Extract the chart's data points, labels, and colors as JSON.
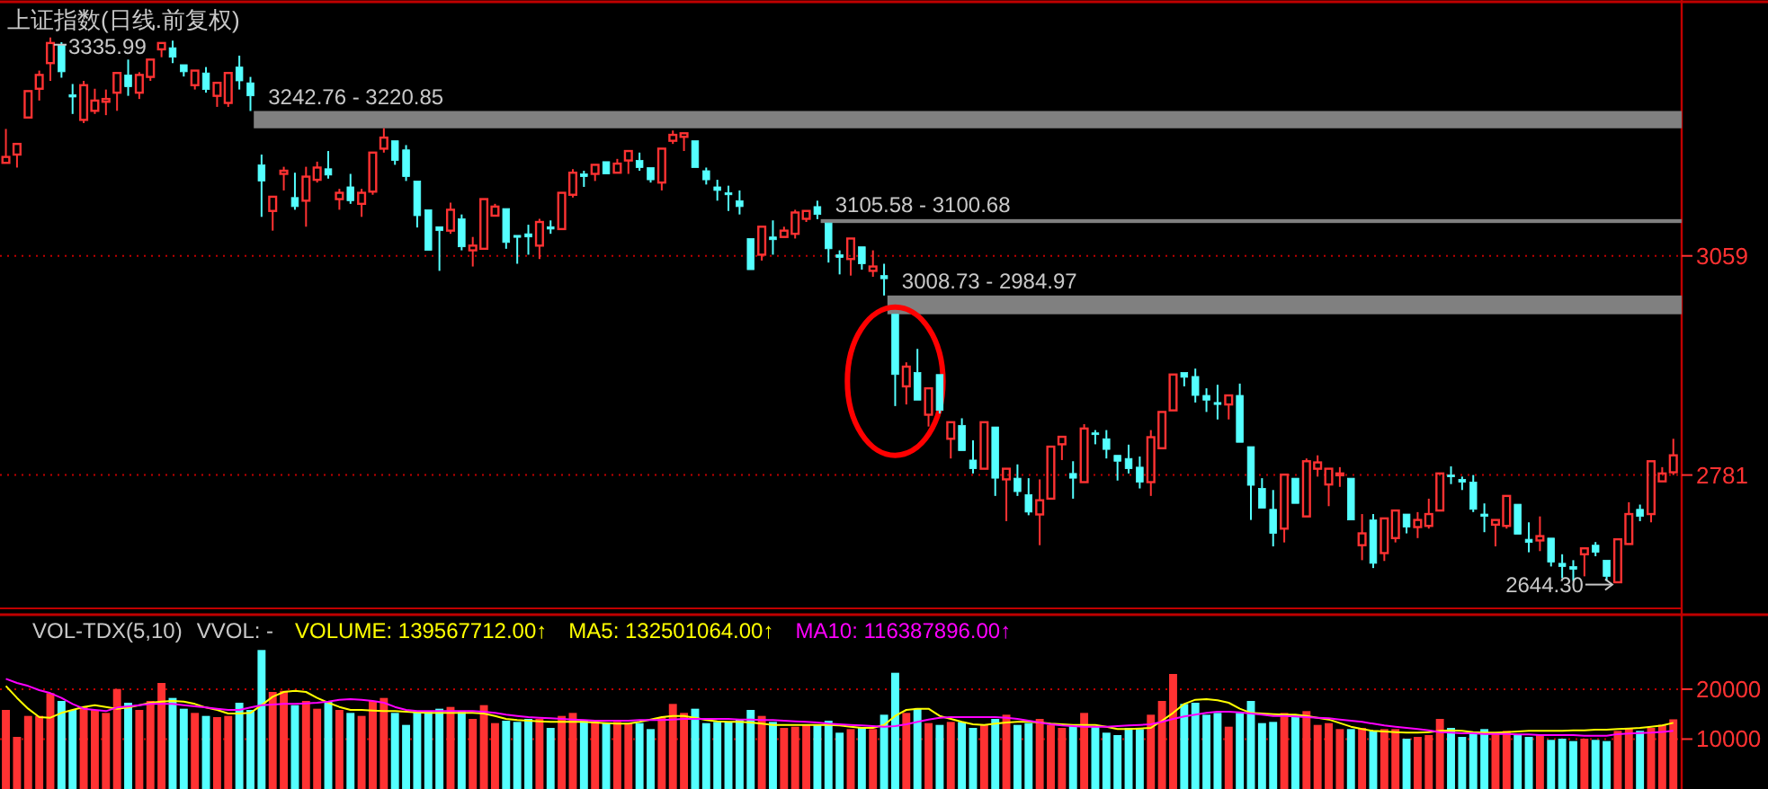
{
  "chart_data": [
    {
      "type": "candlestick",
      "title": "上证指数(日线.前复权)",
      "categories": [
        null,
        null,
        null,
        null,
        null,
        null,
        null,
        null,
        null,
        null,
        null,
        null,
        null,
        null,
        null,
        null,
        null,
        null,
        null,
        null,
        null,
        null,
        null,
        null,
        null,
        null,
        null,
        null,
        null,
        null,
        null,
        null,
        null,
        null,
        null,
        null,
        null,
        null,
        null,
        null,
        null,
        null,
        null,
        null,
        null,
        null,
        null,
        null,
        null,
        null,
        null,
        null,
        null,
        null,
        null,
        null,
        null,
        null,
        null,
        null,
        null,
        null,
        null,
        null,
        null,
        null,
        null,
        null,
        null,
        null,
        null,
        null,
        null,
        null,
        null,
        null,
        null,
        null,
        null,
        null,
        null,
        null,
        null,
        null,
        null,
        null,
        null,
        null,
        null,
        null,
        null,
        null,
        null,
        null,
        null,
        null,
        null,
        null,
        null,
        null,
        null,
        null,
        null,
        null,
        null,
        null,
        null,
        null,
        null,
        null,
        null,
        null,
        null,
        null,
        null,
        null,
        null,
        null,
        null,
        null,
        null,
        null,
        null,
        null,
        null,
        null,
        null,
        null,
        null,
        null,
        null,
        null,
        null,
        null,
        null,
        null,
        null,
        null,
        null,
        null,
        null,
        null,
        null,
        null,
        null,
        null,
        null,
        null,
        null,
        null,
        null
      ],
      "ylim": [
        2613,
        3379
      ],
      "yticks": [
        3059,
        2781
      ],
      "grid": "y",
      "tick_labels": "y",
      "ohlc": [
        [
          3177,
          3220,
          3174.5,
          3184.5
        ],
        [
          3187.5,
          3202.5,
          3171,
          3201
        ],
        [
          3234.5,
          3269.5,
          3231.5,
          3268
        ],
        [
          3271,
          3294,
          3256,
          3288.5
        ],
        [
          3303.5,
          3335.99,
          3281,
          3329
        ],
        [
          3326.5,
          3330,
          3285,
          3292.5
        ],
        [
          3263.5,
          3277,
          3239,
          3260.5
        ],
        [
          3231.5,
          3281,
          3227.5,
          3275.5
        ],
        [
          3243,
          3271,
          3239,
          3256
        ],
        [
          3254.5,
          3270,
          3237.5,
          3258
        ],
        [
          3266,
          3292,
          3243,
          3291
        ],
        [
          3288.5,
          3308,
          3262,
          3273.5
        ],
        [
          3266,
          3292,
          3258,
          3288.5
        ],
        [
          3286,
          3309,
          3281,
          3308
        ],
        [
          3321,
          3332,
          3311,
          3329
        ],
        [
          3323,
          3332,
          3303.5,
          3311
        ],
        [
          3301.5,
          3303.5,
          3286.5,
          3292.5
        ],
        [
          3275.5,
          3296,
          3270,
          3294
        ],
        [
          3291,
          3298.5,
          3266,
          3270
        ],
        [
          3262,
          3281,
          3248,
          3278.5
        ],
        [
          3253,
          3292,
          3248,
          3291
        ],
        [
          3298.5,
          3313,
          3270,
          3281
        ],
        [
          3278.5,
          3286,
          3242.76,
          3262
        ],
        [
          3174.5,
          3187.5,
          3108.5,
          3154
        ],
        [
          3116,
          3136.5,
          3091,
          3134
        ],
        [
          3163,
          3172,
          3142,
          3167
        ],
        [
          3133,
          3164.5,
          3117.5,
          3121.5
        ],
        [
          3129,
          3172,
          3096,
          3159.5
        ],
        [
          3155.5,
          3178.5,
          3152,
          3171
        ],
        [
          3169.5,
          3192,
          3157,
          3161.5
        ],
        [
          3131,
          3144,
          3117.5,
          3139
        ],
        [
          3146.5,
          3163,
          3125,
          3129
        ],
        [
          3125,
          3144,
          3108.5,
          3139
        ],
        [
          3140.5,
          3192,
          3136.5,
          3190
        ],
        [
          3195,
          3220.85,
          3190,
          3209
        ],
        [
          3205,
          3205,
          3174.5,
          3180
        ],
        [
          3193.5,
          3199.5,
          3154,
          3159.5
        ],
        [
          3154,
          3154,
          3095,
          3110
        ],
        [
          3117.5,
          3119,
          3064.5,
          3066
        ],
        [
          3096,
          3096,
          3040,
          3091
        ],
        [
          3091,
          3126.5,
          3087,
          3117.5
        ],
        [
          3106,
          3111.5,
          3066,
          3070.5
        ],
        [
          3066,
          3083,
          3045.5,
          3072
        ],
        [
          3068,
          3134,
          3066,
          3131
        ],
        [
          3110,
          3125,
          3108.5,
          3121.5
        ],
        [
          3119,
          3121.5,
          3068,
          3076
        ],
        [
          3085,
          3087,
          3049,
          3082.5
        ],
        [
          3087,
          3098.5,
          3060.5,
          3083
        ],
        [
          3072,
          3106,
          3055,
          3102
        ],
        [
          3096,
          3104,
          3087,
          3093
        ],
        [
          3093,
          3142,
          3091,
          3139
        ],
        [
          3136.5,
          3169,
          3133,
          3164.5
        ],
        [
          3163,
          3167,
          3146.5,
          3159.5
        ],
        [
          3163,
          3177,
          3154,
          3174.5
        ],
        [
          3178.5,
          3180,
          3161.5,
          3163
        ],
        [
          3164.5,
          3182,
          3161.5,
          3176
        ],
        [
          3180,
          3193.5,
          3163,
          3192
        ],
        [
          3180,
          3190,
          3167,
          3171
        ],
        [
          3171,
          3172,
          3152,
          3155.5
        ],
        [
          3152,
          3197.5,
          3142,
          3195
        ],
        [
          3205,
          3218,
          3201,
          3212.5
        ],
        [
          3210,
          3216,
          3192,
          3214.5
        ],
        [
          3205,
          3205,
          3169.5,
          3171
        ],
        [
          3167,
          3171,
          3149.5,
          3155.5
        ],
        [
          3146.5,
          3155.5,
          3129,
          3142
        ],
        [
          3139,
          3148,
          3116,
          3136.5
        ],
        [
          3129,
          3142,
          3111.5,
          3121.5
        ],
        [
          3081,
          3083,
          3040,
          3041.5
        ],
        [
          3060.5,
          3098.5,
          3053,
          3096
        ],
        [
          3083,
          3104,
          3060.5,
          3079.5
        ],
        [
          3083,
          3096,
          3081,
          3091
        ],
        [
          3087,
          3117.5,
          3081,
          3114
        ],
        [
          3106,
          3117.5,
          3102,
          3116
        ],
        [
          3121.5,
          3129,
          3105.58,
          3111.5
        ],
        [
          3100.68,
          3100.68,
          3050.5,
          3068
        ],
        [
          3060.5,
          3066,
          3035.5,
          3057
        ],
        [
          3055,
          3083,
          3034,
          3081
        ],
        [
          3070.5,
          3072,
          3041.5,
          3049
        ],
        [
          3040,
          3066,
          3032.5,
          3045.5
        ],
        [
          3034,
          3049,
          3008.73,
          3030
        ],
        [
          2984.97,
          2984.97,
          2868.5,
          2908.5
        ],
        [
          2893.5,
          2924,
          2870.5,
          2918.5
        ],
        [
          2911,
          2941,
          2873,
          2876
        ],
        [
          2857.5,
          2893,
          2842.5,
          2891
        ],
        [
          2908.5,
          2908.5,
          2859,
          2863
        ],
        [
          2827,
          2850,
          2802,
          2848
        ],
        [
          2844,
          2853,
          2812,
          2812
        ],
        [
          2800,
          2825,
          2783,
          2789
        ],
        [
          2789,
          2850,
          2787,
          2848
        ],
        [
          2842,
          2844,
          2754.5,
          2777
        ],
        [
          2775.5,
          2791,
          2722.5,
          2789
        ],
        [
          2777,
          2794.5,
          2754.5,
          2760
        ],
        [
          2756,
          2777,
          2730,
          2734
        ],
        [
          2731,
          2775.5,
          2692,
          2749
        ],
        [
          2751,
          2819.5,
          2751,
          2817
        ],
        [
          2820,
          2830,
          2800,
          2829.5
        ],
        [
          2783,
          2798.5,
          2751,
          2777
        ],
        [
          2772,
          2845.5,
          2770,
          2840
        ],
        [
          2834.5,
          2838,
          2820,
          2832.5
        ],
        [
          2827,
          2838,
          2802,
          2813.5
        ],
        [
          2806,
          2807,
          2774,
          2798.5
        ],
        [
          2802,
          2819.5,
          2783,
          2789
        ],
        [
          2791,
          2804.5,
          2764,
          2772
        ],
        [
          2772,
          2838,
          2754.5,
          2829
        ],
        [
          2815,
          2863,
          2812,
          2861
        ],
        [
          2863,
          2911,
          2861,
          2908.5
        ],
        [
          2911,
          2912,
          2893.5,
          2905
        ],
        [
          2906,
          2916,
          2873,
          2882
        ],
        [
          2882,
          2891,
          2861,
          2876
        ],
        [
          2873,
          2895.5,
          2851.5,
          2870.5
        ],
        [
          2870.5,
          2883.5,
          2851.5,
          2882
        ],
        [
          2882,
          2897,
          2821,
          2822.5
        ],
        [
          2817,
          2817,
          2724,
          2768
        ],
        [
          2764,
          2777,
          2737.5,
          2739
        ],
        [
          2737.5,
          2762,
          2690.5,
          2707
        ],
        [
          2713,
          2783,
          2695.5,
          2781.5
        ],
        [
          2777,
          2779,
          2743.5,
          2745
        ],
        [
          2728.5,
          2802,
          2726,
          2798.5
        ],
        [
          2789,
          2806,
          2779,
          2797
        ],
        [
          2769,
          2791,
          2741.5,
          2789
        ],
        [
          2781,
          2791,
          2766,
          2783
        ],
        [
          2777,
          2779,
          2722.5,
          2724
        ],
        [
          2692,
          2731.5,
          2673,
          2707
        ],
        [
          2724,
          2731.5,
          2663,
          2669
        ],
        [
          2682,
          2728,
          2672,
          2726
        ],
        [
          2701,
          2739,
          2695.5,
          2736
        ],
        [
          2731.5,
          2731.5,
          2707,
          2715
        ],
        [
          2715,
          2734,
          2701,
          2724
        ],
        [
          2716.5,
          2751,
          2713,
          2731.5
        ],
        [
          2736,
          2784.5,
          2734,
          2783
        ],
        [
          2781,
          2792,
          2769.5,
          2779
        ],
        [
          2775.5,
          2779,
          2762,
          2772
        ],
        [
          2772,
          2781,
          2734,
          2737.5
        ],
        [
          2731.5,
          2745,
          2708.5,
          2728.5
        ],
        [
          2718,
          2726,
          2690.5,
          2724
        ],
        [
          2716.5,
          2756.5,
          2713,
          2754.5
        ],
        [
          2744,
          2745,
          2703.5,
          2706
        ],
        [
          2699.5,
          2721,
          2683,
          2695.5
        ],
        [
          2698,
          2728.5,
          2684.5,
          2703.5
        ],
        [
          2701,
          2703.5,
          2665,
          2670.5
        ],
        [
          2669,
          2680.5,
          2650,
          2665
        ],
        [
          2665,
          2673,
          2646.5,
          2661.5
        ],
        [
          2680.5,
          2690.5,
          2652.5,
          2688
        ],
        [
          2692,
          2696,
          2678,
          2683
        ],
        [
          2673,
          2673,
          2646.5,
          2652.5
        ],
        [
          2645,
          2701,
          2644.3,
          2699.5
        ],
        [
          2693.5,
          2746.5,
          2690.5,
          2731.5
        ],
        [
          2737.5,
          2743.5,
          2722.5,
          2728.5
        ],
        [
          2731.5,
          2800,
          2721,
          2798.5
        ],
        [
          2773,
          2791,
          2771.5,
          2783
        ],
        [
          2784.5,
          2827,
          2781,
          2806
        ]
      ],
      "bands": [
        {
          "axis": "y",
          "from": 3242.76,
          "to": 3220.85,
          "label": "3242.76 - 3220.85",
          "color": "#808080"
        },
        {
          "axis": "y",
          "from": 3105.58,
          "to": 3100.68,
          "label": "3105.58 - 3100.68",
          "color": "#808080"
        },
        {
          "axis": "y",
          "from": 3008.73,
          "to": 2984.97,
          "label": "3008.73 - 2984.97",
          "color": "#808080"
        }
      ],
      "annotations": [
        "3335.99",
        "2644.30"
      ]
    },
    {
      "type": "bar",
      "title": "VOL-TDX(5,10)",
      "categories": [
        null,
        null,
        null,
        null,
        null,
        null,
        null,
        null,
        null,
        null,
        null,
        null,
        null,
        null,
        null,
        null,
        null,
        null,
        null,
        null,
        null,
        null,
        null,
        null,
        null,
        null,
        null,
        null,
        null,
        null,
        null,
        null,
        null,
        null,
        null,
        null,
        null,
        null,
        null,
        null,
        null,
        null,
        null,
        null,
        null,
        null,
        null,
        null,
        null,
        null,
        null,
        null,
        null,
        null,
        null,
        null,
        null,
        null,
        null,
        null,
        null,
        null,
        null,
        null,
        null,
        null,
        null,
        null,
        null,
        null,
        null,
        null,
        null,
        null,
        null,
        null,
        null,
        null,
        null,
        null,
        null,
        null,
        null,
        null,
        null,
        null,
        null,
        null,
        null,
        null,
        null,
        null,
        null,
        null,
        null,
        null,
        null,
        null,
        null,
        null,
        null,
        null,
        null,
        null,
        null,
        null,
        null,
        null,
        null,
        null,
        null,
        null,
        null,
        null,
        null,
        null,
        null,
        null,
        null,
        null,
        null,
        null,
        null,
        null,
        null,
        null,
        null,
        null,
        null,
        null,
        null,
        null,
        null,
        null,
        null,
        null,
        null,
        null,
        null,
        null,
        null,
        null,
        null,
        null,
        null,
        null,
        null,
        null,
        null,
        null,
        null
      ],
      "ylim": [
        0,
        34560
      ],
      "yticks": [
        10000,
        20000
      ],
      "grid": "y",
      "tick_labels": "y",
      "legend": "top left",
      "annotations": [
        "VVOL: -",
        "VOLUME: 139567712.00↑"
      ],
      "series": [
        {
          "type": "bar",
          "values": [
            15840,
            10440,
            14640,
            14640,
            19200,
            17640,
            15840,
            16440,
            15840,
            15240,
            20040,
            17280,
            15840,
            17640,
            21240,
            18240,
            16080,
            15240,
            14640,
            14400,
            14640,
            17280,
            15840,
            27840,
            19440,
            19680,
            16800,
            17640,
            16080,
            17640,
            15840,
            15240,
            14640,
            17640,
            18240,
            15240,
            12840,
            15600,
            15600,
            16080,
            16440,
            15600,
            14040,
            16800,
            13200,
            13680,
            13440,
            14040,
            14040,
            12240,
            14640,
            15240,
            13680,
            13440,
            13200,
            13440,
            13200,
            13200,
            12000,
            14400,
            17040,
            15240,
            16080,
            13200,
            13440,
            13440,
            14040,
            15840,
            14640,
            13440,
            12240,
            12480,
            12840,
            12840,
            13680,
            11280,
            12000,
            12240,
            12000,
            14880,
            23280,
            15240,
            16080,
            13200,
            12840,
            13440,
            13440,
            12240,
            12840,
            14040,
            14880,
            12840,
            13200,
            14040,
            12840,
            12240,
            12840,
            15240,
            12480,
            11280,
            10800,
            12240,
            12000,
            14880,
            17640,
            23040,
            17040,
            17280,
            14880,
            15240,
            12480,
            15240,
            17640,
            13200,
            13440,
            15240,
            14880,
            15600,
            12840,
            13200,
            12000,
            12000,
            12240,
            11640,
            12000,
            12000,
            10080,
            10440,
            10800,
            14040,
            12240,
            10440,
            11280,
            12000,
            11280,
            11640,
            10800,
            10440,
            10800,
            9840,
            10080,
            9600,
            10080,
            9840,
            9600,
            11640,
            12240,
            11640,
            12240,
            12840,
            13957
          ],
          "colors": [
            "#ff3232",
            "#ff3232",
            "#ff3232",
            "#ff3232",
            "#ff3232",
            "#54ffff",
            "#54ffff",
            "#ff3232",
            "#ff3232",
            "#ff3232",
            "#ff3232",
            "#54ffff",
            "#ff3232",
            "#ff3232",
            "#ff3232",
            "#54ffff",
            "#54ffff",
            "#ff3232",
            "#54ffff",
            "#ff3232",
            "#ff3232",
            "#54ffff",
            "#54ffff",
            "#54ffff",
            "#ff3232",
            "#ff3232",
            "#54ffff",
            "#ff3232",
            "#ff3232",
            "#54ffff",
            "#ff3232",
            "#54ffff",
            "#ff3232",
            "#ff3232",
            "#ff3232",
            "#54ffff",
            "#54ffff",
            "#54ffff",
            "#54ffff",
            "#54ffff",
            "#ff3232",
            "#54ffff",
            "#ff3232",
            "#ff3232",
            "#ff3232",
            "#54ffff",
            "#54ffff",
            "#54ffff",
            "#ff3232",
            "#54ffff",
            "#ff3232",
            "#ff3232",
            "#54ffff",
            "#ff3232",
            "#54ffff",
            "#ff3232",
            "#ff3232",
            "#54ffff",
            "#54ffff",
            "#ff3232",
            "#ff3232",
            "#ff3232",
            "#54ffff",
            "#54ffff",
            "#54ffff",
            "#54ffff",
            "#54ffff",
            "#54ffff",
            "#ff3232",
            "#54ffff",
            "#ff3232",
            "#ff3232",
            "#ff3232",
            "#54ffff",
            "#54ffff",
            "#54ffff",
            "#ff3232",
            "#54ffff",
            "#ff3232",
            "#54ffff",
            "#54ffff",
            "#ff3232",
            "#54ffff",
            "#ff3232",
            "#54ffff",
            "#ff3232",
            "#54ffff",
            "#54ffff",
            "#ff3232",
            "#54ffff",
            "#ff3232",
            "#54ffff",
            "#54ffff",
            "#ff3232",
            "#ff3232",
            "#ff3232",
            "#54ffff",
            "#ff3232",
            "#54ffff",
            "#54ffff",
            "#54ffff",
            "#54ffff",
            "#54ffff",
            "#ff3232",
            "#ff3232",
            "#ff3232",
            "#54ffff",
            "#54ffff",
            "#54ffff",
            "#54ffff",
            "#ff3232",
            "#54ffff",
            "#54ffff",
            "#54ffff",
            "#54ffff",
            "#ff3232",
            "#54ffff",
            "#ff3232",
            "#ff3232",
            "#ff3232",
            "#ff3232",
            "#54ffff",
            "#ff3232",
            "#54ffff",
            "#ff3232",
            "#ff3232",
            "#54ffff",
            "#ff3232",
            "#ff3232",
            "#ff3232",
            "#54ffff",
            "#54ffff",
            "#54ffff",
            "#54ffff",
            "#ff3232",
            "#ff3232",
            "#54ffff",
            "#54ffff",
            "#ff3232",
            "#54ffff",
            "#54ffff",
            "#54ffff",
            "#ff3232",
            "#54ffff",
            "#54ffff",
            "#ff3232",
            "#ff3232",
            "#54ffff",
            "#ff3232",
            "#ff3232",
            "#ff3232"
          ]
        },
        {
          "type": "line",
          "name": "MA5: 132501064.00↑",
          "color": "#ffff00",
          "values": [
            20640,
            18240,
            16080,
            14400,
            14280,
            15240,
            15840,
            16440,
            16800,
            16440,
            16080,
            16320,
            16800,
            17280,
            17520,
            17640,
            17520,
            17040,
            16320,
            15840,
            15120,
            15120,
            15240,
            16800,
            18480,
            19440,
            19680,
            19440,
            18240,
            17280,
            16440,
            15840,
            15840,
            15720,
            15600,
            15600,
            15480,
            15360,
            15240,
            15240,
            15240,
            15240,
            15240,
            15120,
            14640,
            14040,
            13800,
            13680,
            13560,
            13440,
            13440,
            13440,
            13440,
            13320,
            13200,
            13080,
            13080,
            13440,
            13920,
            14400,
            14640,
            14640,
            14280,
            13800,
            13560,
            13440,
            13440,
            13320,
            13080,
            12840,
            12840,
            12840,
            12840,
            12840,
            12840,
            12720,
            12480,
            12240,
            12240,
            12840,
            14640,
            15840,
            16080,
            16080,
            14640,
            14040,
            13440,
            12960,
            12840,
            13080,
            13320,
            13440,
            13440,
            13320,
            13080,
            12960,
            12840,
            12840,
            12840,
            12480,
            12000,
            12000,
            12120,
            12240,
            13680,
            15240,
            17040,
            17880,
            18000,
            17760,
            17280,
            16080,
            15240,
            15120,
            15000,
            14880,
            14880,
            14640,
            14280,
            13920,
            13200,
            12480,
            12000,
            11640,
            11520,
            11400,
            11280,
            11280,
            11400,
            11640,
            11760,
            11640,
            11400,
            11280,
            11280,
            11400,
            11520,
            11640,
            11640,
            11640,
            11640,
            11760,
            11760,
            11880,
            11880,
            12000,
            12120,
            12240,
            12480,
            12720,
            13250
          ]
        },
        {
          "type": "line",
          "name": "MA10: 116387896.00↑",
          "color": "#ff00ff",
          "values": [
            22080,
            21240,
            20640,
            19800,
            19200,
            18240,
            17040,
            16080,
            15840,
            15600,
            16320,
            16560,
            16800,
            17040,
            17040,
            17040,
            16800,
            16560,
            16320,
            16080,
            15840,
            15840,
            16320,
            16800,
            16920,
            17040,
            17040,
            17160,
            17280,
            17520,
            17880,
            18000,
            17880,
            17640,
            17280,
            16440,
            15840,
            15600,
            15600,
            15600,
            15600,
            15600,
            15600,
            15480,
            15240,
            14880,
            14640,
            14400,
            14280,
            14160,
            14040,
            13920,
            13800,
            13680,
            13680,
            13680,
            13680,
            13800,
            13800,
            13800,
            13920,
            14040,
            14040,
            14040,
            14040,
            14040,
            13920,
            13920,
            13800,
            13800,
            13680,
            13560,
            13440,
            13320,
            13080,
            12960,
            12840,
            12720,
            12600,
            12480,
            12600,
            12960,
            13440,
            13920,
            14280,
            14400,
            14400,
            14400,
            14400,
            14400,
            14280,
            14040,
            13680,
            13320,
            12960,
            12720,
            12600,
            12480,
            12480,
            12480,
            12600,
            12720,
            12840,
            12960,
            13440,
            14040,
            14520,
            14880,
            15240,
            15480,
            15480,
            15360,
            15120,
            14880,
            14640,
            14640,
            14520,
            14400,
            14280,
            14160,
            13920,
            13680,
            13440,
            13080,
            12720,
            12480,
            12240,
            12000,
            11760,
            11400,
            11280,
            11160,
            11160,
            11040,
            11040,
            11040,
            10920,
            10920,
            10800,
            10800,
            10800,
            10800,
            10680,
            10680,
            10680,
            11000,
            11100,
            11200,
            11300,
            11450,
            11639
          ]
        }
      ]
    }
  ]
}
